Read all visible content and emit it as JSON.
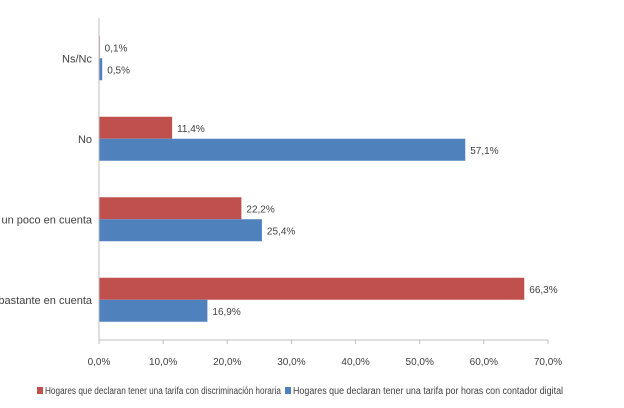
{
  "chart_data": {
    "type": "bar",
    "orientation": "horizontal",
    "categories": [
      "Ns/Nc",
      "No",
      "Sí, un poco en cuenta",
      "Sí, bastante en cuenta"
    ],
    "series": [
      {
        "name": "Hogares que declaran tener una tarifa con discriminación horaria",
        "color": "#C0504D",
        "values": [
          0.1,
          11.4,
          22.2,
          66.3
        ],
        "labels": [
          "0,1%",
          "11,4%",
          "22,2%",
          "66,3%"
        ]
      },
      {
        "name": "Hogares que declaran tener una tarifa por horas con contador digital",
        "color": "#4F81BD",
        "values": [
          0.5,
          57.1,
          25.4,
          16.9
        ],
        "labels": [
          "0,5%",
          "57,1%",
          "25,4%",
          "16,9%"
        ]
      }
    ],
    "xlim": [
      0,
      70
    ],
    "xticks": [
      0,
      10,
      20,
      30,
      40,
      50,
      60,
      70
    ],
    "xtick_labels": [
      "0,0%",
      "10,0%",
      "20,0%",
      "30,0%",
      "40,0%",
      "50,0%",
      "60,0%",
      "70,0%"
    ],
    "grid": false,
    "legend_position": "bottom",
    "title": "",
    "xlabel": "",
    "ylabel": ""
  }
}
